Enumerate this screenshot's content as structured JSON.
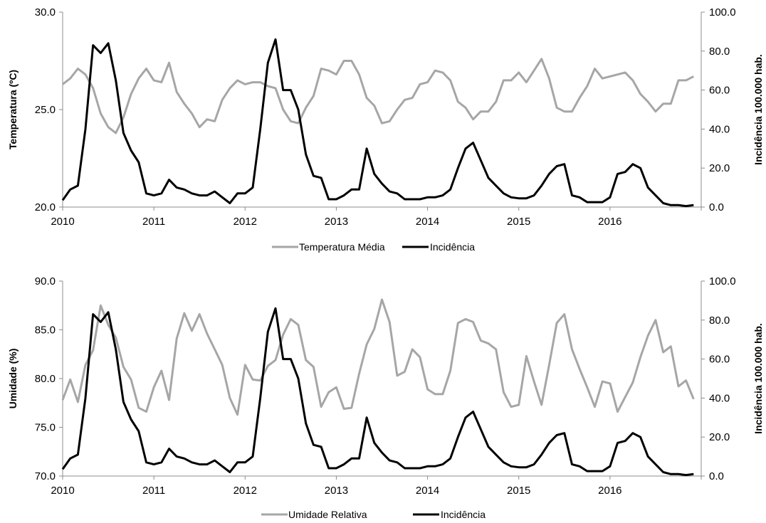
{
  "chart_data": [
    {
      "type": "line",
      "ylabel": "Temperatura (ºC)",
      "y2label": "Incidência 100.000 hab.",
      "ylim": [
        20,
        30
      ],
      "y2lim": [
        0,
        100
      ],
      "yticks": [
        "20.0",
        "25.0",
        "30.0"
      ],
      "y2ticks": [
        "0.0",
        "20.0",
        "40.0",
        "60.0",
        "80.0",
        "100.0"
      ],
      "xticks": [
        "2010",
        "2011",
        "2012",
        "2013",
        "2014",
        "2015",
        "2016"
      ],
      "xlim": [
        2010,
        2017
      ],
      "legend_position": "bottom",
      "series": [
        {
          "name": "Temperatura Média",
          "axis": "left",
          "color": "#a6a6a6",
          "x_start": 2010.0,
          "x_step": 0.0833333,
          "values": [
            26.3,
            26.6,
            27.1,
            26.8,
            26.1,
            24.8,
            24.1,
            23.8,
            24.6,
            25.8,
            26.6,
            27.1,
            26.5,
            26.4,
            27.4,
            25.9,
            25.3,
            24.8,
            24.1,
            24.5,
            24.4,
            25.5,
            26.1,
            26.5,
            26.3,
            26.4,
            26.4,
            26.2,
            26.1,
            25.0,
            24.4,
            24.3,
            25.1,
            25.7,
            27.1,
            27.0,
            26.8,
            27.5,
            27.5,
            26.8,
            25.6,
            25.2,
            24.3,
            24.4,
            25.0,
            25.5,
            25.6,
            26.3,
            26.4,
            27.0,
            26.9,
            26.5,
            25.4,
            25.1,
            24.5,
            24.9,
            24.9,
            25.4,
            26.5,
            26.5,
            26.9,
            26.4,
            27.0,
            27.6,
            26.6,
            25.1,
            24.9,
            24.9,
            25.6,
            26.2,
            27.1,
            26.6,
            26.7,
            26.8,
            26.9,
            26.5,
            25.8,
            25.4,
            24.9,
            25.3,
            25.3,
            26.5,
            26.5,
            26.7
          ]
        },
        {
          "name": "Incidência",
          "axis": "right",
          "color": "#000000",
          "x_start": 2010.0,
          "x_step": 0.0833333,
          "values": [
            3.5,
            9,
            11,
            40,
            83,
            79,
            84,
            65,
            38,
            29,
            23,
            7,
            6,
            7,
            14,
            10,
            9,
            7,
            6,
            6,
            8,
            5,
            2,
            7,
            7,
            10,
            40,
            74,
            86,
            60,
            60,
            50,
            27,
            16,
            15,
            4,
            4,
            6,
            9,
            9,
            30,
            17,
            12,
            8,
            7,
            4,
            4,
            4,
            5,
            5,
            6,
            9,
            20,
            30,
            33,
            24,
            15,
            11,
            7,
            5,
            4.5,
            4.5,
            6,
            11,
            17,
            21,
            22,
            6,
            5,
            2.5,
            2.5,
            2.5,
            5,
            17,
            18,
            22,
            20,
            10,
            6,
            2,
            1,
            1,
            0.5,
            1
          ]
        }
      ]
    },
    {
      "type": "line",
      "ylabel": "Umidade (%)",
      "y2label": "Incidência 100.000 hab.",
      "ylim": [
        70,
        90
      ],
      "y2lim": [
        0,
        100
      ],
      "yticks": [
        "70.0",
        "75.0",
        "80.0",
        "85.0",
        "90.0"
      ],
      "y2ticks": [
        "0.0",
        "20.0",
        "40.0",
        "60.0",
        "80.0",
        "100.0"
      ],
      "xticks": [
        "2010",
        "2011",
        "2012",
        "2013",
        "2014",
        "2015",
        "2016"
      ],
      "xlim": [
        2010,
        2017
      ],
      "legend_position": "bottom",
      "series": [
        {
          "name": "Umidade Relativa",
          "axis": "left",
          "color": "#a6a6a6",
          "x_start": 2010.0,
          "x_step": 0.0833333,
          "values": [
            77.8,
            79.9,
            77.6,
            81.4,
            82.9,
            87.5,
            85.5,
            84.2,
            81.2,
            79.9,
            77.0,
            76.6,
            79.1,
            80.8,
            77.8,
            84.1,
            86.7,
            84.9,
            86.6,
            84.6,
            83.0,
            81.4,
            78.0,
            76.3,
            81.4,
            79.9,
            79.8,
            81.3,
            81.9,
            84.5,
            86.1,
            85.5,
            81.9,
            81.2,
            77.1,
            78.6,
            79.1,
            76.9,
            77.0,
            80.5,
            83.5,
            85.1,
            88.1,
            85.8,
            80.3,
            80.7,
            83.0,
            82.2,
            78.9,
            78.4,
            78.4,
            80.8,
            85.7,
            86.1,
            85.8,
            83.9,
            83.6,
            83.0,
            78.6,
            77.1,
            77.3,
            82.3,
            79.7,
            77.3,
            81.4,
            85.7,
            86.6,
            83.0,
            81.0,
            79.1,
            77.1,
            79.7,
            79.5,
            76.6,
            78.1,
            79.6,
            82.2,
            84.4,
            86.0,
            82.7,
            83.3,
            79.2,
            79.8,
            77.9
          ]
        },
        {
          "name": "Incidência",
          "axis": "right",
          "color": "#000000",
          "x_start": 2010.0,
          "x_step": 0.0833333,
          "values": [
            3.5,
            9,
            11,
            40,
            83,
            79,
            84,
            65,
            38,
            29,
            23,
            7,
            6,
            7,
            14,
            10,
            9,
            7,
            6,
            6,
            8,
            5,
            2,
            7,
            7,
            10,
            40,
            74,
            86,
            60,
            60,
            50,
            27,
            16,
            15,
            4,
            4,
            6,
            9,
            9,
            30,
            17,
            12,
            8,
            7,
            4,
            4,
            4,
            5,
            5,
            6,
            9,
            20,
            30,
            33,
            24,
            15,
            11,
            7,
            5,
            4.5,
            4.5,
            6,
            11,
            17,
            21,
            22,
            6,
            5,
            2.5,
            2.5,
            2.5,
            5,
            17,
            18,
            22,
            20,
            10,
            6,
            2,
            1,
            1,
            0.5,
            1
          ]
        }
      ]
    }
  ]
}
